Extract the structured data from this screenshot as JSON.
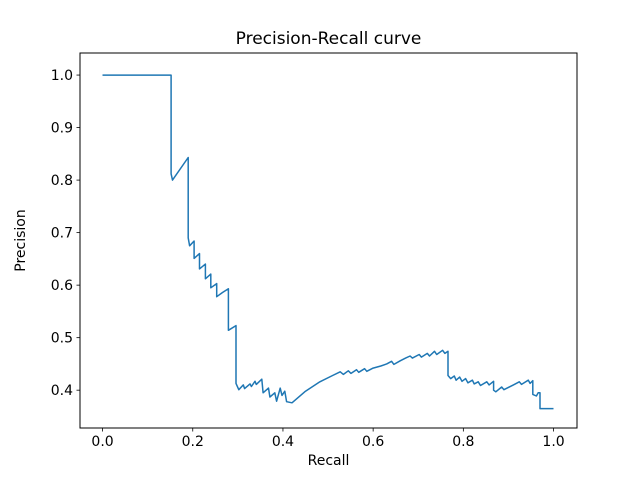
{
  "chart_data": {
    "type": "line",
    "title": "Precision-Recall curve",
    "xlabel": "Recall",
    "ylabel": "Precision",
    "grid": false,
    "legend": null,
    "line_color": "#1f77b4",
    "axis_color": "#000000",
    "background_color": "#ffffff",
    "xlim": [
      -0.05,
      1.052
    ],
    "ylim": [
      0.328,
      1.042
    ],
    "xticks": [
      0.0,
      0.2,
      0.4,
      0.6,
      0.8,
      1.0
    ],
    "yticks": [
      0.4,
      0.5,
      0.6,
      0.7,
      0.8,
      0.9,
      1.0
    ],
    "series": [
      {
        "name": "precision-recall",
        "x": [
          0.0,
          0.152,
          0.152,
          0.155,
          0.19,
          0.19,
          0.193,
          0.203,
          0.203,
          0.215,
          0.215,
          0.228,
          0.228,
          0.24,
          0.24,
          0.253,
          0.253,
          0.266,
          0.279,
          0.279,
          0.296,
          0.296,
          0.302,
          0.312,
          0.315,
          0.327,
          0.33,
          0.338,
          0.341,
          0.353,
          0.356,
          0.368,
          0.371,
          0.382,
          0.386,
          0.394,
          0.398,
          0.404,
          0.408,
          0.42,
          0.45,
          0.482,
          0.51,
          0.527,
          0.534,
          0.545,
          0.551,
          0.563,
          0.568,
          0.581,
          0.586,
          0.6,
          0.617,
          0.63,
          0.641,
          0.646,
          0.66,
          0.672,
          0.682,
          0.687,
          0.702,
          0.707,
          0.72,
          0.725,
          0.736,
          0.741,
          0.754,
          0.759,
          0.766,
          0.766,
          0.772,
          0.78,
          0.784,
          0.792,
          0.797,
          0.805,
          0.81,
          0.82,
          0.824,
          0.833,
          0.838,
          0.852,
          0.857,
          0.867,
          0.867,
          0.872,
          0.885,
          0.89,
          0.911,
          0.924,
          0.929,
          0.944,
          0.948,
          0.954,
          0.954,
          0.962,
          0.966,
          0.97,
          0.97,
          1.0
        ],
        "y": [
          1.0,
          1.0,
          0.812,
          0.8,
          0.843,
          0.69,
          0.675,
          0.684,
          0.651,
          0.66,
          0.631,
          0.64,
          0.612,
          0.621,
          0.595,
          0.603,
          0.578,
          0.586,
          0.593,
          0.514,
          0.523,
          0.413,
          0.401,
          0.41,
          0.403,
          0.412,
          0.407,
          0.417,
          0.411,
          0.421,
          0.395,
          0.404,
          0.387,
          0.395,
          0.379,
          0.404,
          0.39,
          0.398,
          0.378,
          0.376,
          0.398,
          0.416,
          0.428,
          0.435,
          0.43,
          0.437,
          0.432,
          0.439,
          0.434,
          0.441,
          0.436,
          0.442,
          0.446,
          0.45,
          0.455,
          0.449,
          0.456,
          0.461,
          0.465,
          0.461,
          0.468,
          0.463,
          0.47,
          0.465,
          0.474,
          0.468,
          0.476,
          0.47,
          0.474,
          0.428,
          0.422,
          0.427,
          0.419,
          0.425,
          0.417,
          0.422,
          0.414,
          0.419,
          0.412,
          0.416,
          0.409,
          0.416,
          0.41,
          0.417,
          0.4,
          0.397,
          0.406,
          0.401,
          0.41,
          0.416,
          0.411,
          0.419,
          0.413,
          0.418,
          0.392,
          0.389,
          0.395,
          0.395,
          0.365,
          0.365
        ]
      }
    ]
  }
}
